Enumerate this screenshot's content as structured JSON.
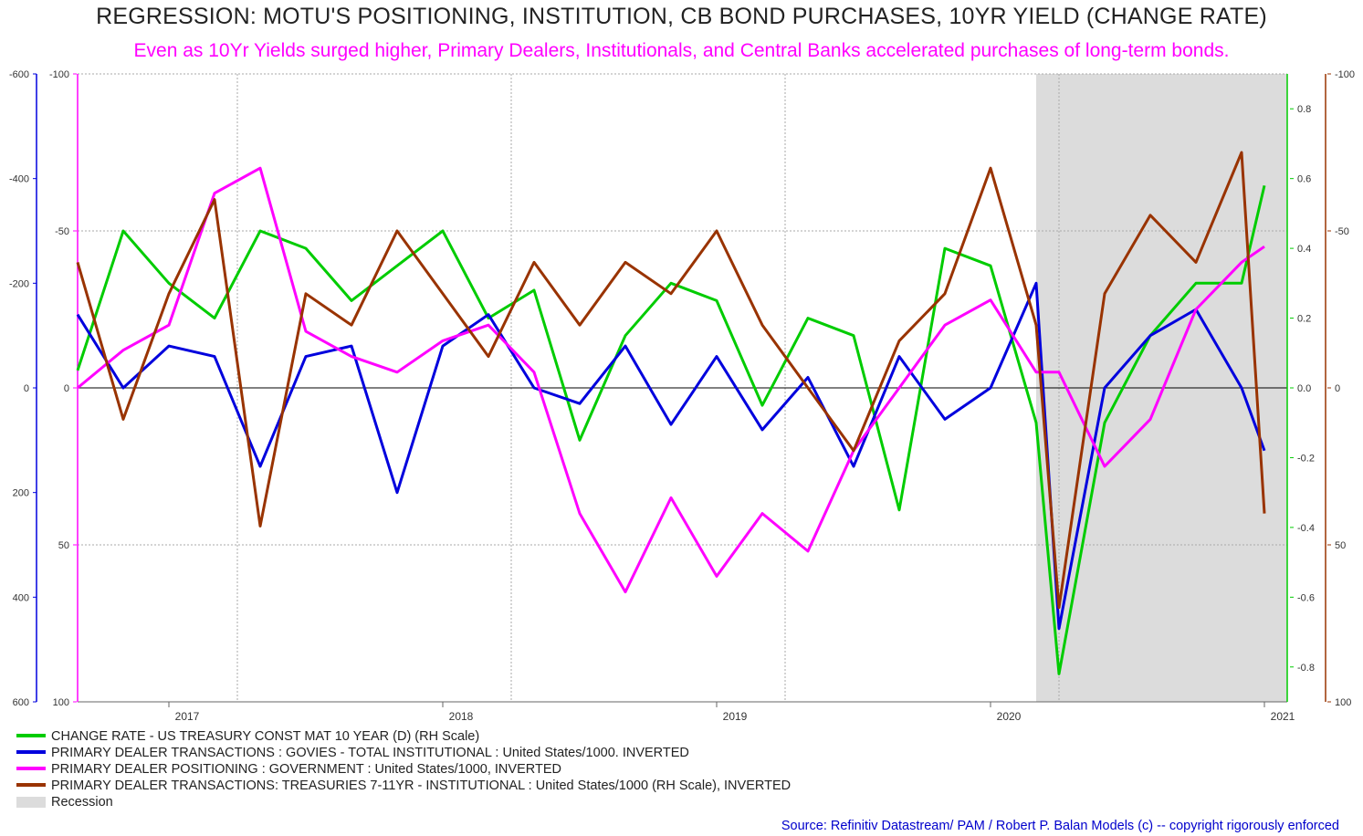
{
  "title": "REGRESSION: MOTU'S POSITIONING, INSTITUTION, CB BOND PURCHASES, 10YR YIELD (CHANGE RATE)",
  "subtitle": "Even as 10Yr Yields surged higher, Primary Dealers, Institutionals, and Central Banks accelerated purchases of long-term bonds.",
  "source": "Source: Refinitiv Datastream/ PAM / Robert P. Balan Models (c) -- copyright rigorously enforced",
  "colors": {
    "green": "#00cc00",
    "blue": "#0000dd",
    "magenta": "#ff00ff",
    "brown": "#993300",
    "recession": "#dcdcdc",
    "grid": "#aaaaaa"
  },
  "legend": [
    {
      "label": "CHANGE RATE - US TREASURY CONST MAT 10 YEAR (D) (RH Scale)",
      "color": "#00cc00"
    },
    {
      "label": "PRIMARY DEALER TRANSACTIONS : GOVIES - TOTAL INSTITUTIONAL : United States/1000. INVERTED",
      "color": "#0000dd"
    },
    {
      "label": "PRIMARY DEALER POSITIONING : GOVERNMENT : United States/1000, INVERTED",
      "color": "#ff00ff"
    },
    {
      "label": "PRIMARY DEALER TRANSACTIONS: TREASURIES 7-11YR - INSTITUTIONAL : United States/1000 (RH Scale), INVERTED",
      "color": "#993300"
    },
    {
      "label": "Recession",
      "color": "#dcdcdc",
      "recession": true
    }
  ],
  "chart_data": {
    "type": "line",
    "x_range": [
      "2016-09",
      "2021-02"
    ],
    "x_tick_labels": [
      "2017",
      "2018",
      "2019",
      "2020",
      "2021"
    ],
    "grid": true,
    "legend_position": "bottom",
    "recession": {
      "start": "2020-03",
      "end": "2021-02"
    },
    "axes": {
      "left_outer": {
        "color": "#0000dd",
        "range": [
          600,
          -600
        ],
        "ticks": [
          "-600",
          "-400",
          "-200",
          "0",
          "200",
          "400",
          "600"
        ],
        "inverted": true
      },
      "left_inner": {
        "color": "#ff00ff",
        "range": [
          100,
          -100
        ],
        "ticks": [
          "-100",
          "-50",
          "0",
          "50",
          "100"
        ],
        "inverted": true
      },
      "right_inner": {
        "color": "#00cc00",
        "range": [
          -0.9,
          0.9
        ],
        "ticks": [
          "0.8",
          "0.6",
          "0.4",
          "0.2",
          "0.0",
          "-0.2",
          "-0.4",
          "-0.6",
          "-0.8"
        ]
      },
      "right_outer": {
        "color": "#993300",
        "range": [
          100,
          -100
        ],
        "ticks": [
          "-100",
          "-50",
          "0",
          "50",
          "100"
        ],
        "inverted": true
      }
    },
    "series": [
      {
        "name": "CHANGE RATE - US TREASURY CONST MAT 10 YEAR (D) (RH Scale)",
        "axis": "right_inner",
        "color": "#00cc00",
        "x": [
          "2016-09",
          "2016-11",
          "2017-01",
          "2017-03",
          "2017-05",
          "2017-07",
          "2017-09",
          "2017-11",
          "2018-01",
          "2018-03",
          "2018-05",
          "2018-07",
          "2018-09",
          "2018-11",
          "2019-01",
          "2019-03",
          "2019-05",
          "2019-07",
          "2019-09",
          "2019-11",
          "2020-01",
          "2020-03",
          "2020-04",
          "2020-06",
          "2020-08",
          "2020-10",
          "2020-12",
          "2021-01"
        ],
        "values": [
          0.05,
          0.45,
          0.3,
          0.2,
          0.45,
          0.4,
          0.25,
          0.35,
          0.45,
          0.2,
          0.28,
          -0.15,
          0.15,
          0.3,
          0.25,
          -0.05,
          0.2,
          0.15,
          -0.35,
          0.4,
          0.35,
          -0.1,
          -0.82,
          -0.1,
          0.15,
          0.3,
          0.3,
          0.58
        ]
      },
      {
        "name": "PRIMARY DEALER TRANSACTIONS : GOVIES - TOTAL INSTITUTIONAL : United States/1000. INVERTED",
        "axis": "left_outer",
        "color": "#0000dd",
        "x": [
          "2016-09",
          "2016-11",
          "2017-01",
          "2017-03",
          "2017-05",
          "2017-07",
          "2017-09",
          "2017-11",
          "2018-01",
          "2018-03",
          "2018-05",
          "2018-07",
          "2018-09",
          "2018-11",
          "2019-01",
          "2019-03",
          "2019-05",
          "2019-07",
          "2019-09",
          "2019-11",
          "2020-01",
          "2020-03",
          "2020-04",
          "2020-06",
          "2020-08",
          "2020-10",
          "2020-12",
          "2021-01"
        ],
        "values": [
          -140,
          0,
          -80,
          -60,
          150,
          -60,
          -80,
          200,
          -80,
          -140,
          0,
          30,
          -80,
          70,
          -60,
          80,
          -20,
          150,
          -60,
          60,
          0,
          -200,
          460,
          0,
          -100,
          -150,
          0,
          120
        ]
      },
      {
        "name": "PRIMARY DEALER POSITIONING : GOVERNMENT : United States/1000, INVERTED",
        "axis": "left_inner",
        "color": "#ff00ff",
        "x": [
          "2016-09",
          "2016-11",
          "2017-01",
          "2017-03",
          "2017-05",
          "2017-07",
          "2017-09",
          "2017-11",
          "2018-01",
          "2018-03",
          "2018-05",
          "2018-07",
          "2018-09",
          "2018-11",
          "2019-01",
          "2019-03",
          "2019-05",
          "2019-07",
          "2019-09",
          "2019-11",
          "2020-01",
          "2020-03",
          "2020-04",
          "2020-06",
          "2020-08",
          "2020-10",
          "2020-12",
          "2021-01"
        ],
        "values": [
          0,
          -12,
          -20,
          -62,
          -70,
          -18,
          -10,
          -5,
          -15,
          -20,
          -5,
          40,
          65,
          35,
          60,
          40,
          52,
          20,
          0,
          -20,
          -28,
          -5,
          -5,
          25,
          10,
          -25,
          -40,
          -45
        ]
      },
      {
        "name": "PRIMARY DEALER TRANSACTIONS: TREASURIES 7-11YR - INSTITUTIONAL : United States/1000 (RH Scale), INVERTED",
        "axis": "right_outer",
        "color": "#993300",
        "x": [
          "2016-09",
          "2016-11",
          "2017-01",
          "2017-03",
          "2017-05",
          "2017-07",
          "2017-09",
          "2017-11",
          "2018-01",
          "2018-03",
          "2018-05",
          "2018-07",
          "2018-09",
          "2018-11",
          "2019-01",
          "2019-03",
          "2019-05",
          "2019-07",
          "2019-09",
          "2019-11",
          "2020-01",
          "2020-03",
          "2020-04",
          "2020-06",
          "2020-08",
          "2020-10",
          "2020-12",
          "2021-01"
        ],
        "values": [
          -40,
          10,
          -30,
          -60,
          44,
          -30,
          -20,
          -50,
          -30,
          -10,
          -40,
          -20,
          -40,
          -30,
          -50,
          -20,
          0,
          20,
          -15,
          -30,
          -70,
          -20,
          70,
          -30,
          -55,
          -40,
          -75,
          40
        ]
      }
    ]
  }
}
